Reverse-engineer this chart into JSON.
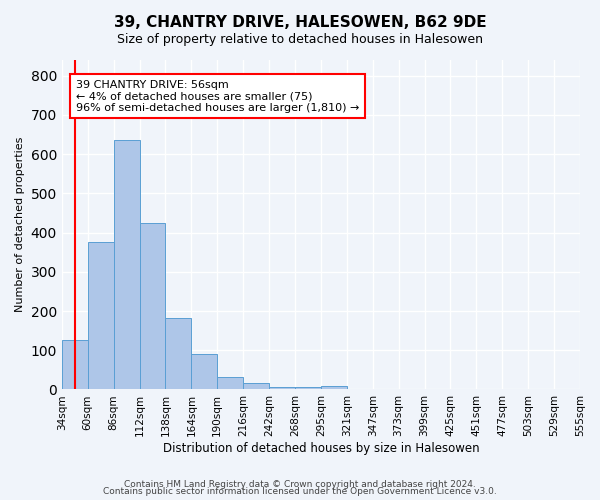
{
  "title": "39, CHANTRY DRIVE, HALESOWEN, B62 9DE",
  "subtitle": "Size of property relative to detached houses in Halesowen",
  "xlabel": "Distribution of detached houses by size in Halesowen",
  "ylabel": "Number of detached properties",
  "bar_values": [
    125,
    375,
    635,
    425,
    183,
    90,
    33,
    17,
    6,
    7,
    8,
    0,
    0,
    0,
    0,
    0,
    0,
    0,
    0,
    0
  ],
  "bin_labels": [
    "34sqm",
    "60sqm",
    "86sqm",
    "112sqm",
    "138sqm",
    "164sqm",
    "190sqm",
    "216sqm",
    "242sqm",
    "268sqm",
    "295sqm",
    "321sqm",
    "347sqm",
    "373sqm",
    "399sqm",
    "425sqm",
    "451sqm",
    "477sqm",
    "503sqm",
    "529sqm",
    "555sqm"
  ],
  "bar_color": "#aec6e8",
  "bar_edge_color": "#5a9fd4",
  "marker_color": "red",
  "ylim": [
    0,
    840
  ],
  "yticks": [
    0,
    100,
    200,
    300,
    400,
    500,
    600,
    700,
    800
  ],
  "annotation_text": "39 CHANTRY DRIVE: 56sqm\n← 4% of detached houses are smaller (75)\n96% of semi-detached houses are larger (1,810) →",
  "annotation_box_color": "white",
  "annotation_box_edge": "red",
  "footer1": "Contains HM Land Registry data © Crown copyright and database right 2024.",
  "footer2": "Contains public sector information licensed under the Open Government Licence v3.0.",
  "background_color": "#f0f4fa",
  "grid_color": "white"
}
